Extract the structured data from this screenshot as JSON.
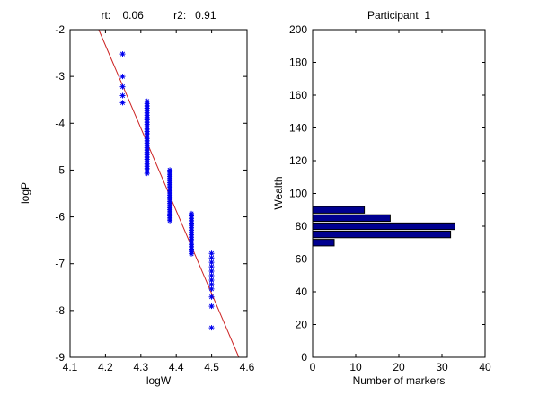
{
  "window": {
    "background": "#ffffff"
  },
  "left_plot": {
    "title": "rt:    0.06          r2:   0.91",
    "xlabel": "logW",
    "ylabel": "logP"
  },
  "right_plot": {
    "title": "Participant  1",
    "xlabel": "Number of markers",
    "ylabel": "Wealth"
  },
  "chart_data": [
    {
      "type": "scatter",
      "title": "rt: 0.06  r2: 0.91",
      "rt": 0.06,
      "r2": 0.91,
      "xlabel": "logW",
      "ylabel": "logP",
      "xlim": [
        4.1,
        4.6
      ],
      "ylim": [
        -9,
        -2
      ],
      "xticks": [
        4.1,
        4.2,
        4.3,
        4.4,
        4.5,
        4.6
      ],
      "xtick_labels": [
        "4.1",
        "4.2",
        "4.3",
        "4.4",
        "4.5",
        "4.6"
      ],
      "yticks": [
        -9,
        -8,
        -7,
        -6,
        -5,
        -4,
        -3,
        -2
      ],
      "ytick_labels": [
        "-9",
        "-8",
        "-7",
        "-6",
        "-5",
        "-4",
        "-3",
        "-2"
      ],
      "grid": false,
      "marker": "*",
      "marker_color": "#0000ee",
      "clusters": [
        {
          "x": 4.2485,
          "wealth": 70,
          "points": [
            -2.52,
            -3.0,
            -3.22,
            -3.41,
            -3.56
          ]
        },
        {
          "x": 4.3175,
          "wealth": 75,
          "n": 32,
          "span": [
            -3.53,
            -5.07
          ]
        },
        {
          "x": 4.382,
          "wealth": 80,
          "n": 33,
          "span": [
            -5.0,
            -6.08
          ]
        },
        {
          "x": 4.4427,
          "wealth": 85,
          "n": 18,
          "span": [
            -5.93,
            -6.79
          ]
        },
        {
          "x": 4.4998,
          "wealth": 90,
          "n": 9,
          "span": [
            -6.78,
            -7.54
          ],
          "points": [
            -7.71,
            -7.91,
            -8.37
          ]
        }
      ],
      "fit_line": {
        "x1": 4.181,
        "y1": -2,
        "x2": 4.577,
        "y2": -9,
        "color": "#cc2222"
      }
    },
    {
      "type": "bar",
      "orientation": "horizontal",
      "title": "Participant 1",
      "xlabel": "Number of markers",
      "ylabel": "Wealth",
      "xlim": [
        0,
        40
      ],
      "ylim": [
        0,
        200
      ],
      "xticks": [
        0,
        10,
        20,
        30,
        40
      ],
      "xtick_labels": [
        "0",
        "10",
        "20",
        "30",
        "40"
      ],
      "yticks": [
        0,
        20,
        40,
        60,
        80,
        100,
        120,
        140,
        160,
        180,
        200
      ],
      "ytick_labels": [
        "0",
        "20",
        "40",
        "60",
        "80",
        "100",
        "120",
        "140",
        "160",
        "180",
        "200"
      ],
      "grid": false,
      "categories": [
        70,
        75,
        80,
        85,
        90
      ],
      "values": [
        5,
        32,
        33,
        18,
        12
      ],
      "bar_thickness": 4,
      "bar_color": "#000090",
      "bar_edge_color": "#000000"
    }
  ]
}
